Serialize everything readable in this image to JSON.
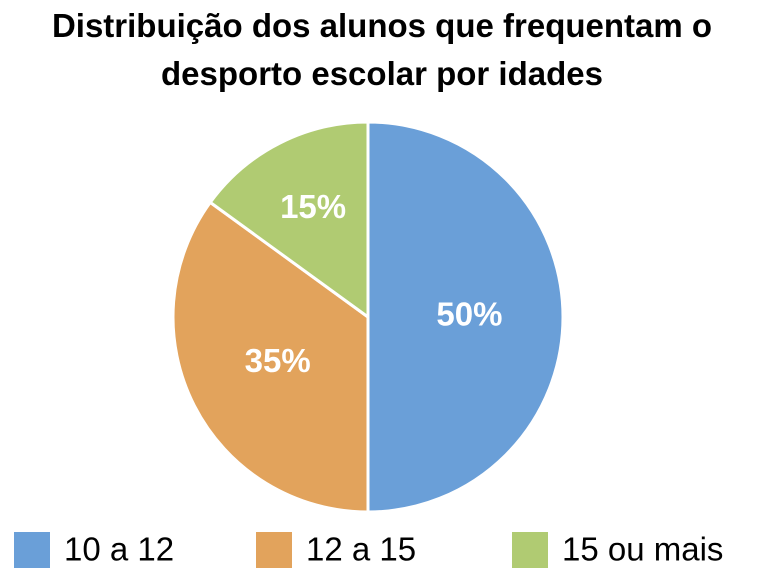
{
  "chart_data": {
    "type": "pie",
    "title": "Distribuição dos alunos que frequentam o desporto escolar por idades",
    "categories": [
      "10 a 12",
      "12 a 15",
      "15 ou mais"
    ],
    "values": [
      50,
      35,
      15
    ],
    "value_labels": [
      "50%",
      "35%",
      "15%"
    ],
    "colors": [
      "#6a9fd8",
      "#e2a35c",
      "#b0cb72"
    ],
    "legend": "bottom"
  }
}
